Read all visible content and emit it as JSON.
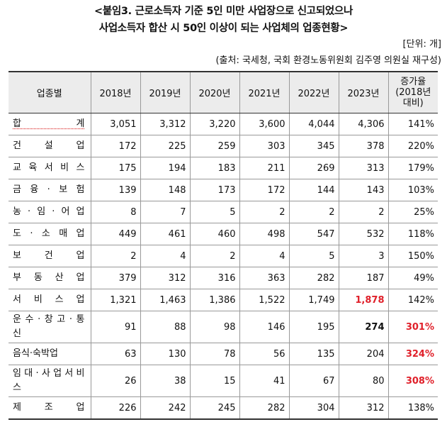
{
  "title_line1": "<붙임3. 근로소득자 기준 5인 미만 사업장으로 신고되었으나",
  "title_line2": "사업소득자 합산 시 50인 이상이 되는 사업체의 업종현황>",
  "unit": "[단위: 개]",
  "source": "(출처: 국세청, 국회 환경노동위원회 김주영 의원실 재구성)",
  "colors": {
    "highlight_red": "#e0202a",
    "header_bg": "#ececec"
  },
  "table": {
    "headers": {
      "industry": "업종별",
      "y2018": "2018년",
      "y2019": "2019년",
      "y2020": "2020년",
      "y2021": "2021년",
      "y2022": "2022년",
      "y2023": "2023년",
      "growth": "증가율 (2018년 대비)"
    },
    "rows": [
      {
        "name": "합 계",
        "v2018": "3,051",
        "v2019": "3,312",
        "v2020": "3,220",
        "v2021": "3,600",
        "v2022": "4,044",
        "v2023": "4,306",
        "growth": "141%"
      },
      {
        "name": "건 설 업",
        "v2018": "172",
        "v2019": "225",
        "v2020": "259",
        "v2021": "303",
        "v2022": "345",
        "v2023": "378",
        "growth": "220%"
      },
      {
        "name": "교 육 서 비 스",
        "v2018": "175",
        "v2019": "194",
        "v2020": "183",
        "v2021": "211",
        "v2022": "269",
        "v2023": "313",
        "growth": "179%"
      },
      {
        "name": "금 융 · 보 험",
        "v2018": "139",
        "v2019": "148",
        "v2020": "173",
        "v2021": "172",
        "v2022": "144",
        "v2023": "143",
        "growth": "103%"
      },
      {
        "name": "농 · 임 · 어 업",
        "v2018": "8",
        "v2019": "7",
        "v2020": "5",
        "v2021": "2",
        "v2022": "2",
        "v2023": "2",
        "growth": "25%"
      },
      {
        "name": "도 · 소 매 업",
        "v2018": "449",
        "v2019": "461",
        "v2020": "460",
        "v2021": "498",
        "v2022": "547",
        "v2023": "532",
        "growth": "118%"
      },
      {
        "name": "보 건 업",
        "v2018": "2",
        "v2019": "4",
        "v2020": "2",
        "v2021": "4",
        "v2022": "5",
        "v2023": "3",
        "growth": "150%"
      },
      {
        "name": "부 동 산 업",
        "v2018": "379",
        "v2019": "312",
        "v2020": "316",
        "v2021": "363",
        "v2022": "282",
        "v2023": "187",
        "growth": "49%"
      },
      {
        "name": "서 비 스 업",
        "v2018": "1,321",
        "v2019": "1,463",
        "v2020": "1,386",
        "v2021": "1,522",
        "v2022": "1,749",
        "v2023": "1,878",
        "growth": "142%"
      },
      {
        "name": "운 수 · 창 고 · 통 신",
        "v2018": "91",
        "v2019": "88",
        "v2020": "98",
        "v2021": "146",
        "v2022": "195",
        "v2023": "274",
        "growth": "301%"
      },
      {
        "name": "음식·숙박업",
        "v2018": "63",
        "v2019": "130",
        "v2020": "78",
        "v2021": "56",
        "v2022": "135",
        "v2023": "204",
        "growth": "324%"
      },
      {
        "name": "임 대 · 사 업 서 비 스",
        "v2018": "26",
        "v2019": "38",
        "v2020": "15",
        "v2021": "41",
        "v2022": "67",
        "v2023": "80",
        "growth": "308%"
      },
      {
        "name": "제 조 업",
        "v2018": "226",
        "v2019": "242",
        "v2020": "245",
        "v2021": "282",
        "v2022": "304",
        "v2023": "312",
        "growth": "138%"
      }
    ]
  }
}
